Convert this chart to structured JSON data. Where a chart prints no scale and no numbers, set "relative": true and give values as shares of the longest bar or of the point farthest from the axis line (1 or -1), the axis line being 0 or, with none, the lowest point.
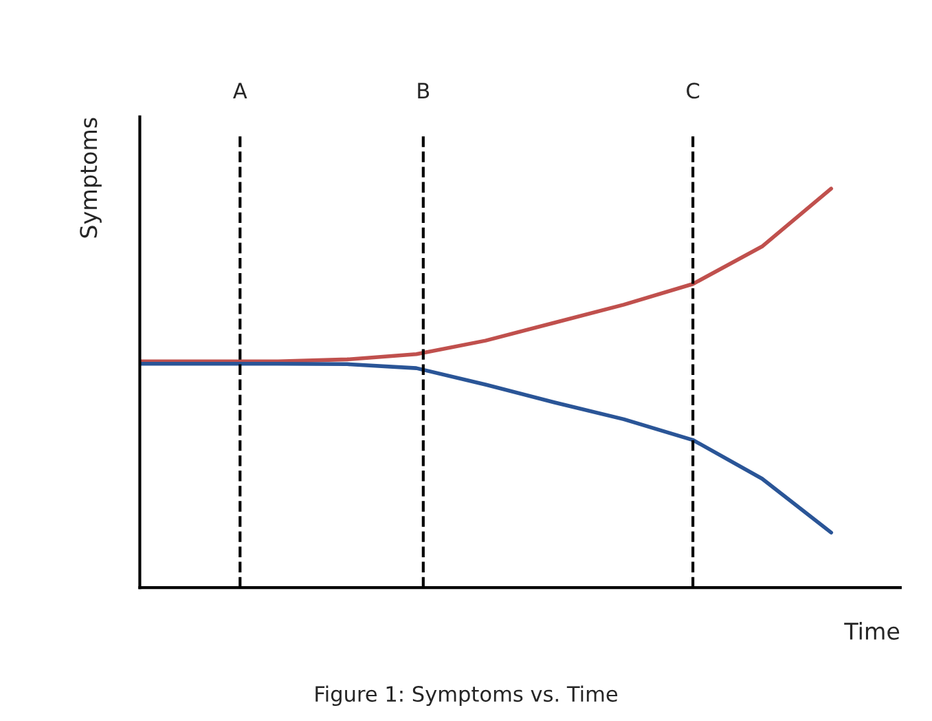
{
  "chart_data": {
    "type": "line",
    "relative": true,
    "xlabel": "Time",
    "ylabel": "Symptoms",
    "annotations": [
      "A",
      "B",
      "C",
      "Figure 1: Symptoms vs. Time"
    ],
    "categories": [
      null,
      null,
      null,
      null,
      null,
      null,
      null,
      null,
      null,
      null,
      null
    ],
    "series": [
      {
        "color": "#c0504d",
        "values": [
          0.567,
          0.567,
          0.567,
          0.572,
          0.585,
          0.619,
          0.664,
          0.709,
          0.761,
          0.855,
          1.0
        ]
      },
      {
        "color": "#2a5597",
        "values": [
          0.561,
          0.561,
          0.561,
          0.56,
          0.55,
          0.509,
          0.464,
          0.422,
          0.37,
          0.273,
          0.138
        ]
      }
    ],
    "grid": false,
    "legend": false,
    "tick_labels": false,
    "marker": "none",
    "line_style": "solid"
  }
}
